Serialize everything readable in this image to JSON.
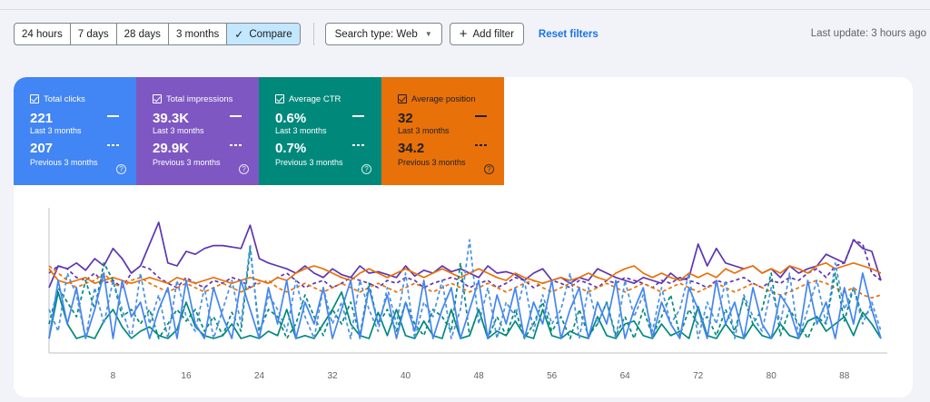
{
  "toolbar": {
    "ranges": [
      "24 hours",
      "7 days",
      "28 days",
      "3 months"
    ],
    "compare_label": "Compare",
    "search_type_label": "Search type: Web",
    "add_filter_label": "Add filter",
    "reset_label": "Reset filters",
    "last_update": "Last update: 3 hours ago"
  },
  "metrics": {
    "clicks": {
      "label": "Total clicks",
      "value_current": "221",
      "label_current": "Last 3 months",
      "value_previous": "207",
      "label_previous": "Previous 3 months"
    },
    "impressions": {
      "label": "Total impressions",
      "value_current": "39.3K",
      "label_current": "Last 3 months",
      "value_previous": "29.9K",
      "label_previous": "Previous 3 months"
    },
    "ctr": {
      "label": "Average CTR",
      "value_current": "0.6%",
      "label_current": "Last 3 months",
      "value_previous": "0.7%",
      "label_previous": "Previous 3 months"
    },
    "position": {
      "label": "Average position",
      "value_current": "32",
      "label_current": "Last 3 months",
      "value_previous": "34.2",
      "label_previous": "Previous 3 months"
    }
  },
  "colors": {
    "clicks": "#4285f4",
    "impressions": "#5e35b1",
    "ctr": "#00897b",
    "position": "#e8710a",
    "clicks_light": "#4a90e2"
  },
  "chart_data": {
    "type": "line",
    "x_range": [
      1,
      92
    ],
    "x_ticks": [
      "8",
      "16",
      "24",
      "32",
      "40",
      "48",
      "56",
      "64",
      "72",
      "80",
      "88"
    ],
    "y_range": [
      0,
      1
    ],
    "series_y_normalized": true,
    "series": [
      {
        "metric": "impressions",
        "period": "last",
        "style": "solid",
        "values": [
          0.45,
          0.6,
          0.58,
          0.62,
          0.57,
          0.65,
          0.6,
          0.72,
          0.65,
          0.55,
          0.6,
          0.75,
          0.9,
          0.62,
          0.6,
          0.7,
          0.68,
          0.72,
          0.74,
          0.74,
          0.73,
          0.72,
          0.88,
          0.65,
          0.62,
          0.6,
          0.58,
          0.55,
          0.6,
          0.55,
          0.52,
          0.58,
          0.54,
          0.52,
          0.6,
          0.55,
          0.56,
          0.54,
          0.52,
          0.6,
          0.53,
          0.57,
          0.55,
          0.6,
          0.56,
          0.58,
          0.55,
          0.52,
          0.6,
          0.55,
          0.56,
          0.54,
          0.5,
          0.55,
          0.58,
          0.5,
          0.52,
          0.48,
          0.52,
          0.5,
          0.58,
          0.55,
          0.52,
          0.5,
          0.48,
          0.52,
          0.5,
          0.48,
          0.55,
          0.5,
          0.52,
          0.75,
          0.6,
          0.72,
          0.62,
          0.6,
          0.58,
          0.6,
          0.55,
          0.58,
          0.52,
          0.6,
          0.55,
          0.58,
          0.6,
          0.68,
          0.65,
          0.62,
          0.78,
          0.72,
          0.7,
          0.5
        ]
      },
      {
        "metric": "impressions",
        "period": "previous",
        "style": "dashed",
        "values": [
          0.55,
          0.6,
          0.58,
          0.52,
          0.5,
          0.55,
          0.48,
          0.5,
          0.45,
          0.55,
          0.6,
          0.58,
          0.52,
          0.48,
          0.45,
          0.52,
          0.48,
          0.45,
          0.5,
          0.48,
          0.52,
          0.5,
          0.45,
          0.5,
          0.48,
          0.52,
          0.55,
          0.5,
          0.45,
          0.48,
          0.5,
          0.45,
          0.48,
          0.52,
          0.5,
          0.48,
          0.45,
          0.5,
          0.48,
          0.52,
          0.5,
          0.45,
          0.48,
          0.5,
          0.52,
          0.5,
          0.45,
          0.48,
          0.5,
          0.45,
          0.48,
          0.52,
          0.5,
          0.45,
          0.48,
          0.5,
          0.48,
          0.45,
          0.5,
          0.48,
          0.45,
          0.5,
          0.48,
          0.52,
          0.5,
          0.48,
          0.45,
          0.5,
          0.48,
          0.52,
          0.5,
          0.48,
          0.45,
          0.5,
          0.48,
          0.5,
          0.52,
          0.48,
          0.45,
          0.5,
          0.48,
          0.52,
          0.5,
          0.55,
          0.58,
          0.52,
          0.6,
          0.62,
          0.78,
          0.75,
          0.55,
          0.5
        ]
      },
      {
        "metric": "position",
        "period": "last",
        "style": "solid",
        "values": [
          0.58,
          0.5,
          0.48,
          0.5,
          0.52,
          0.48,
          0.5,
          0.52,
          0.5,
          0.48,
          0.5,
          0.52,
          0.5,
          0.48,
          0.52,
          0.5,
          0.48,
          0.5,
          0.52,
          0.5,
          0.48,
          0.5,
          0.52,
          0.5,
          0.48,
          0.52,
          0.5,
          0.55,
          0.58,
          0.6,
          0.58,
          0.55,
          0.52,
          0.5,
          0.55,
          0.58,
          0.55,
          0.52,
          0.55,
          0.58,
          0.55,
          0.52,
          0.55,
          0.58,
          0.55,
          0.52,
          0.55,
          0.58,
          0.55,
          0.52,
          0.5,
          0.55,
          0.52,
          0.5,
          0.48,
          0.5,
          0.52,
          0.5,
          0.52,
          0.55,
          0.52,
          0.5,
          0.55,
          0.58,
          0.6,
          0.55,
          0.52,
          0.55,
          0.52,
          0.5,
          0.55,
          0.52,
          0.55,
          0.52,
          0.58,
          0.55,
          0.58,
          0.6,
          0.55,
          0.58,
          0.55,
          0.6,
          0.58,
          0.55,
          0.6,
          0.62,
          0.58,
          0.6,
          0.62,
          0.6,
          0.58,
          0.55
        ]
      },
      {
        "metric": "position",
        "period": "previous",
        "style": "dashed",
        "values": [
          0.6,
          0.55,
          0.5,
          0.45,
          0.48,
          0.5,
          0.55,
          0.48,
          0.45,
          0.5,
          0.52,
          0.48,
          0.45,
          0.42,
          0.45,
          0.48,
          0.45,
          0.42,
          0.45,
          0.48,
          0.45,
          0.42,
          0.45,
          0.48,
          0.5,
          0.45,
          0.42,
          0.45,
          0.48,
          0.45,
          0.42,
          0.45,
          0.48,
          0.45,
          0.42,
          0.45,
          0.48,
          0.45,
          0.42,
          0.45,
          0.48,
          0.45,
          0.42,
          0.45,
          0.48,
          0.45,
          0.42,
          0.45,
          0.48,
          0.45,
          0.42,
          0.45,
          0.48,
          0.5,
          0.45,
          0.42,
          0.45,
          0.48,
          0.45,
          0.42,
          0.45,
          0.48,
          0.45,
          0.42,
          0.45,
          0.48,
          0.45,
          0.42,
          0.45,
          0.48,
          0.45,
          0.42,
          0.45,
          0.48,
          0.45,
          0.42,
          0.45,
          0.48,
          0.45,
          0.42,
          0.4,
          0.42,
          0.45,
          0.48,
          0.5,
          0.48,
          0.45,
          0.42,
          0.45,
          0.4,
          0.38,
          0.4
        ]
      },
      {
        "metric": "ctr",
        "period": "last",
        "style": "solid",
        "values": [
          0.1,
          0.42,
          0.2,
          0.1,
          0.12,
          0.1,
          0.22,
          0.3,
          0.18,
          0.1,
          0.15,
          0.18,
          0.12,
          0.1,
          0.16,
          0.35,
          0.18,
          0.12,
          0.1,
          0.12,
          0.2,
          0.1,
          0.12,
          0.1,
          0.15,
          0.12,
          0.3,
          0.1,
          0.12,
          0.1,
          0.2,
          0.3,
          0.42,
          0.2,
          0.12,
          0.1,
          0.28,
          0.12,
          0.3,
          0.12,
          0.1,
          0.22,
          0.12,
          0.1,
          0.3,
          0.1,
          0.12,
          0.3,
          0.1,
          0.15,
          0.12,
          0.22,
          0.12,
          0.1,
          0.3,
          0.12,
          0.1,
          0.15,
          0.12,
          0.1,
          0.25,
          0.12,
          0.1,
          0.2,
          0.22,
          0.12,
          0.1,
          0.2,
          0.12,
          0.15,
          0.1,
          0.32,
          0.12,
          0.1,
          0.2,
          0.12,
          0.1,
          0.2,
          0.12,
          0.1,
          0.2,
          0.12,
          0.1,
          0.22,
          0.25,
          0.15,
          0.2,
          0.25,
          0.12,
          0.28,
          0.2,
          0.1
        ]
      },
      {
        "metric": "ctr",
        "period": "previous",
        "style": "dashed",
        "values": [
          0.2,
          0.45,
          0.35,
          0.25,
          0.5,
          0.3,
          0.62,
          0.5,
          0.25,
          0.3,
          0.2,
          0.3,
          0.1,
          0.2,
          0.3,
          0.22,
          0.3,
          0.15,
          0.25,
          0.12,
          0.28,
          0.15,
          0.72,
          0.15,
          0.3,
          0.25,
          0.1,
          0.2,
          0.4,
          0.25,
          0.12,
          0.3,
          0.2,
          0.35,
          0.12,
          0.48,
          0.2,
          0.3,
          0.15,
          0.35,
          0.2,
          0.12,
          0.3,
          0.25,
          0.15,
          0.62,
          0.12,
          0.3,
          0.1,
          0.25,
          0.12,
          0.3,
          0.1,
          0.2,
          0.35,
          0.15,
          0.25,
          0.1,
          0.3,
          0.12,
          0.2,
          0.35,
          0.12,
          0.25,
          0.1,
          0.3,
          0.12,
          0.25,
          0.4,
          0.12,
          0.3,
          0.2,
          0.25,
          0.12,
          0.3,
          0.15,
          0.38,
          0.2,
          0.3,
          0.55,
          0.12,
          0.3,
          0.2,
          0.1,
          0.25,
          0.2,
          0.55,
          0.22,
          0.45,
          0.25,
          0.3,
          0.1
        ]
      },
      {
        "metric": "clicks",
        "period": "last",
        "style": "solid",
        "values": [
          0.1,
          0.5,
          0.2,
          0.45,
          0.1,
          0.3,
          0.55,
          0.1,
          0.5,
          0.25,
          0.35,
          0.1,
          0.3,
          0.45,
          0.1,
          0.5,
          0.2,
          0.1,
          0.45,
          0.25,
          0.1,
          0.5,
          0.3,
          0.1,
          0.45,
          0.2,
          0.5,
          0.1,
          0.35,
          0.2,
          0.45,
          0.1,
          0.3,
          0.5,
          0.1,
          0.45,
          0.2,
          0.4,
          0.1,
          0.35,
          0.15,
          0.5,
          0.1,
          0.3,
          0.45,
          0.1,
          0.3,
          0.5,
          0.1,
          0.4,
          0.2,
          0.45,
          0.1,
          0.35,
          0.2,
          0.5,
          0.1,
          0.3,
          0.45,
          0.1,
          0.35,
          0.2,
          0.5,
          0.1,
          0.3,
          0.45,
          0.1,
          0.35,
          0.2,
          0.1,
          0.45,
          0.3,
          0.1,
          0.5,
          0.2,
          0.35,
          0.1,
          0.45,
          0.2,
          0.1,
          0.4,
          0.3,
          0.1,
          0.5,
          0.2,
          0.35,
          0.1,
          0.45,
          0.2,
          0.55,
          0.3,
          0.1
        ]
      },
      {
        "metric": "clicks",
        "period": "previous",
        "style": "dashed",
        "values": [
          0.3,
          0.15,
          0.55,
          0.4,
          0.1,
          0.45,
          0.2,
          0.5,
          0.3,
          0.1,
          0.55,
          0.2,
          0.4,
          0.1,
          0.5,
          0.25,
          0.15,
          0.45,
          0.1,
          0.3,
          0.5,
          0.2,
          0.75,
          0.1,
          0.4,
          0.3,
          0.15,
          0.5,
          0.25,
          0.1,
          0.45,
          0.2,
          0.35,
          0.1,
          0.5,
          0.3,
          0.15,
          0.45,
          0.2,
          0.55,
          0.1,
          0.35,
          0.25,
          0.5,
          0.1,
          0.3,
          0.78,
          0.2,
          0.45,
          0.1,
          0.35,
          0.25,
          0.5,
          0.15,
          0.4,
          0.2,
          0.3,
          0.55,
          0.1,
          0.45,
          0.2,
          0.35,
          0.1,
          0.5,
          0.25,
          0.4,
          0.15,
          0.45,
          0.2,
          0.3,
          0.55,
          0.1,
          0.35,
          0.2,
          0.5,
          0.1,
          0.4,
          0.25,
          0.15,
          0.45,
          0.2,
          0.55,
          0.1,
          0.3,
          0.5,
          0.2,
          0.62,
          0.3,
          0.45,
          0.2,
          0.35,
          0.15
        ]
      }
    ]
  }
}
